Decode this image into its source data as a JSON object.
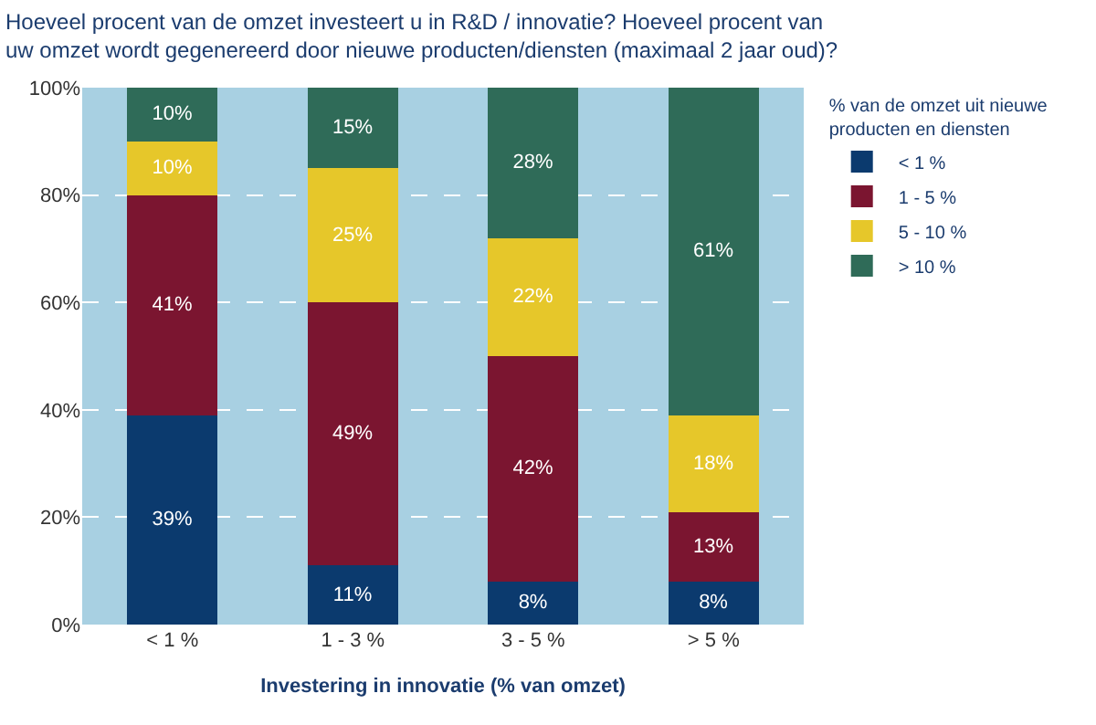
{
  "chart_data": {
    "type": "bar",
    "stacked": true,
    "title": "Hoeveel procent van de omzet investeert u in R&D / innovatie? Hoeveel procent van\nuw omzet wordt gegenereerd door nieuwe producten/diensten (maximaal 2 jaar oud)?",
    "xlabel": "Investering in innovatie (% van omzet)",
    "legend_title": "% van de omzet uit nieuwe\nproducten en diensten",
    "categories": [
      "< 1 %",
      "1 - 3 %",
      "3 - 5 %",
      "> 5 %"
    ],
    "series": [
      {
        "name": "< 1 %",
        "color": "#0b3a6e",
        "values": [
          39,
          11,
          8,
          8
        ],
        "value_labels": [
          "39%",
          "11%",
          "8%",
          "8%"
        ]
      },
      {
        "name": "1 - 5 %",
        "color": "#7b1530",
        "values": [
          41,
          49,
          42,
          13
        ],
        "value_labels": [
          "41%",
          "49%",
          "42%",
          "13%"
        ]
      },
      {
        "name": "5 - 10 %",
        "color": "#e6c72a",
        "values": [
          10,
          25,
          22,
          18
        ],
        "value_labels": [
          "10%",
          "25%",
          "22%",
          "18%"
        ]
      },
      {
        "name": "> 10 %",
        "color": "#2f6b58",
        "values": [
          10,
          15,
          28,
          61
        ],
        "value_labels": [
          "10%",
          "15%",
          "28%",
          "61%"
        ]
      }
    ],
    "ylim": [
      0,
      100
    ],
    "yticks": [
      {
        "value": 0,
        "label": "0%"
      },
      {
        "value": 20,
        "label": "20%"
      },
      {
        "value": 40,
        "label": "40%"
      },
      {
        "value": 60,
        "label": "60%"
      },
      {
        "value": 80,
        "label": "80%"
      },
      {
        "value": 100,
        "label": "100%"
      }
    ],
    "grid": "y",
    "legend": "right"
  }
}
